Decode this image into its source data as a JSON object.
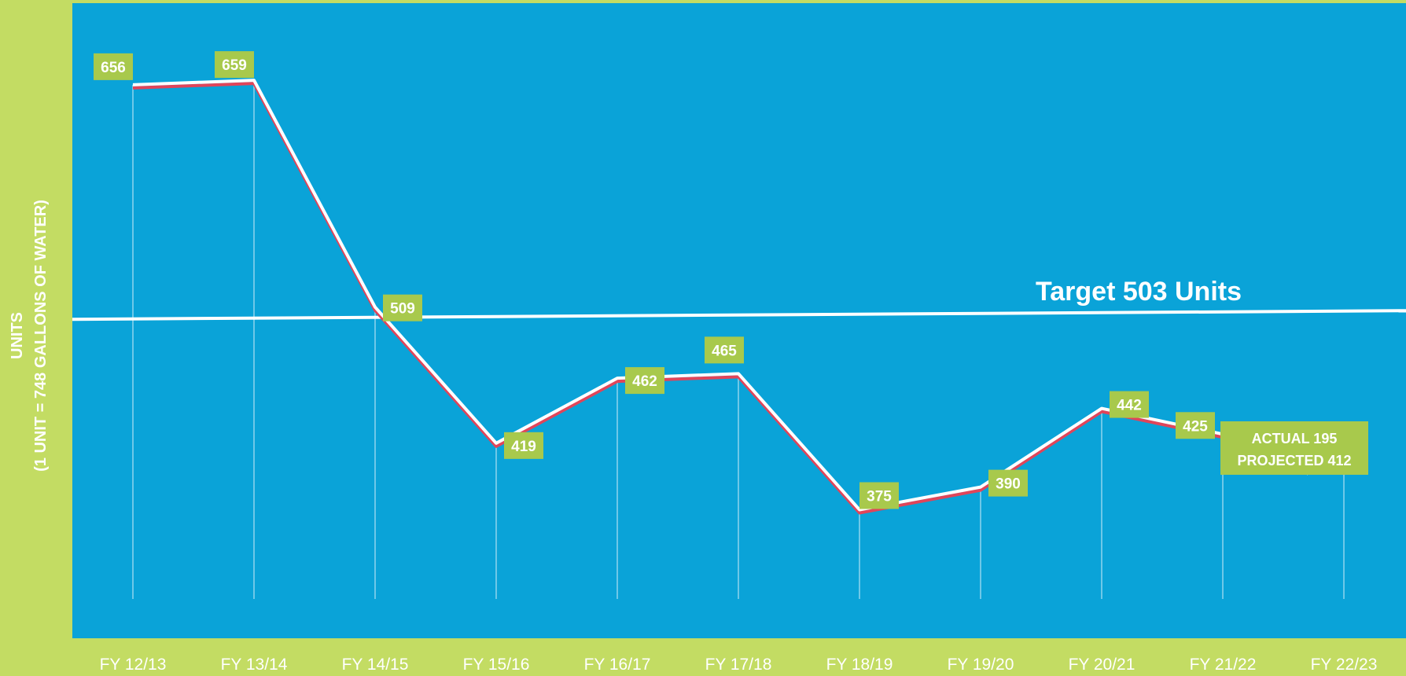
{
  "chart_data": {
    "type": "line",
    "ylabel": [
      "UNITS",
      "(1 UNIT = 748 GALLONS OF WATER)"
    ],
    "categories": [
      "FY 12/13",
      "FY 13/14",
      "FY 14/15",
      "FY 15/16",
      "FY 16/17",
      "FY 17/18",
      "FY 18/19",
      "FY 19/20",
      "FY 20/21",
      "FY 21/22",
      "FY 22/23"
    ],
    "series": [
      {
        "values": [
          656,
          659,
          509,
          419,
          462,
          465,
          375,
          390,
          442,
          425,
          412
        ]
      }
    ],
    "data_labels": [
      "656",
      "659",
      "509",
      "419",
      "462",
      "465",
      "375",
      "390",
      "442",
      "425"
    ],
    "target": {
      "value": 503,
      "label": "Target 503 Units"
    },
    "annotation": {
      "lines": [
        "ACTUAL 195",
        "PROJECTED 412"
      ],
      "category": "FY 22/23"
    },
    "ylim": [
      290,
      710
    ],
    "grid": false,
    "legend": "none",
    "colors": {
      "page_background": "#c3dc63",
      "plot_background": "#0aa3d8",
      "line": "#ffffff",
      "line_shadow": "#e0455a",
      "label_box": "#a8c94c",
      "text": "#ffffff"
    }
  }
}
